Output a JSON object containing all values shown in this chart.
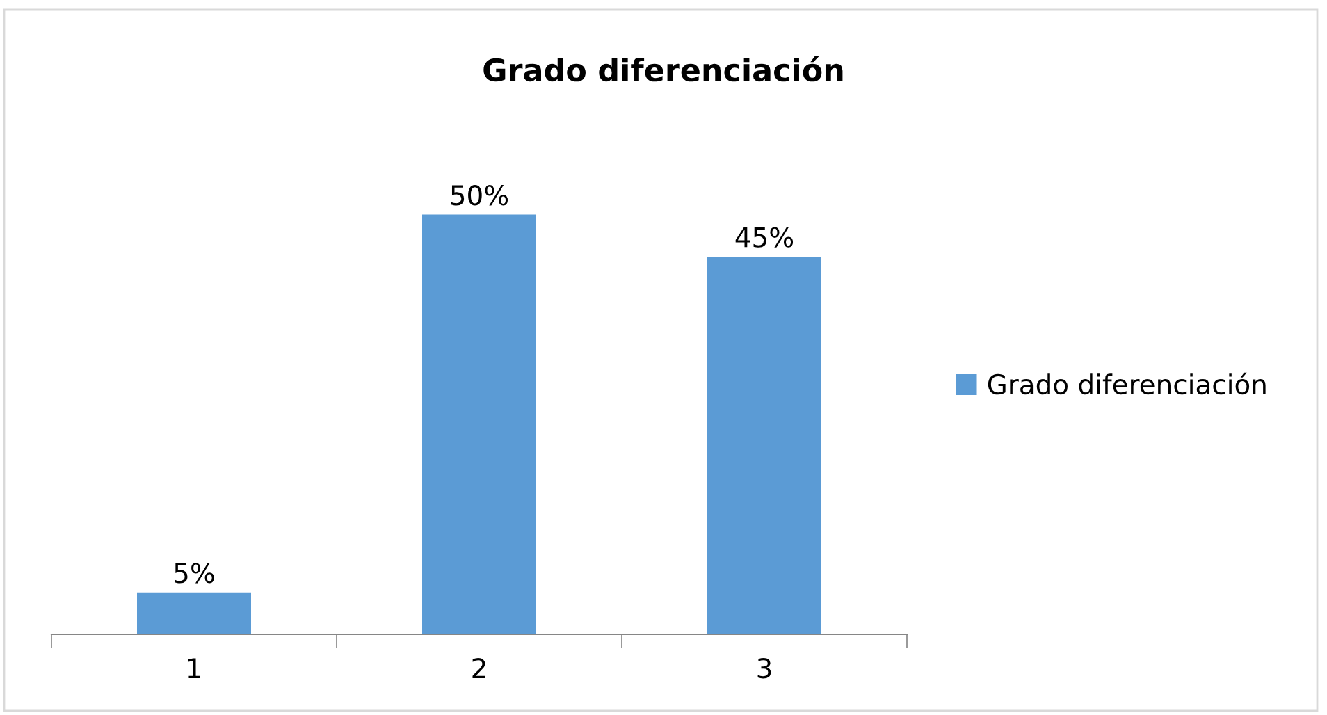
{
  "chart_data": {
    "type": "bar",
    "title": "Grado diferenciación",
    "categories": [
      "1",
      "2",
      "3"
    ],
    "series": [
      {
        "name": "Grado diferenciación",
        "color": "#5b9bd5",
        "values": [
          5,
          50,
          45
        ],
        "value_labels": [
          "5%",
          "50%",
          "45%"
        ]
      }
    ],
    "legend": "right",
    "grid": false,
    "tick_labels": "x"
  }
}
